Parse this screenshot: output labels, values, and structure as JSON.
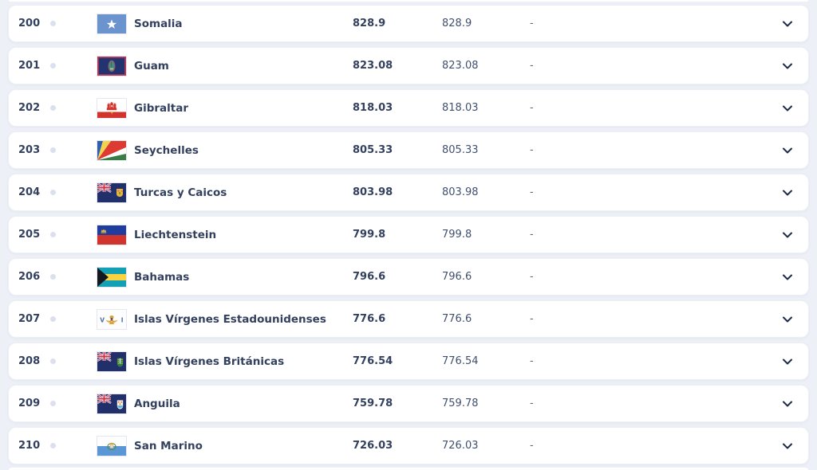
{
  "list": {
    "rows": [
      {
        "rank": "200",
        "country": "Somalia",
        "flag": "somalia",
        "value1": "828.9",
        "value2": "828.9",
        "value3": "-"
      },
      {
        "rank": "201",
        "country": "Guam",
        "flag": "guam",
        "value1": "823.08",
        "value2": "823.08",
        "value3": "-"
      },
      {
        "rank": "202",
        "country": "Gibraltar",
        "flag": "gibraltar",
        "value1": "818.03",
        "value2": "818.03",
        "value3": "-"
      },
      {
        "rank": "203",
        "country": "Seychelles",
        "flag": "seychelles",
        "value1": "805.33",
        "value2": "805.33",
        "value3": "-"
      },
      {
        "rank": "204",
        "country": "Turcas y Caicos",
        "flag": "turcas-y-caicos",
        "value1": "803.98",
        "value2": "803.98",
        "value3": "-"
      },
      {
        "rank": "205",
        "country": "Liechtenstein",
        "flag": "liechtenstein",
        "value1": "799.8",
        "value2": "799.8",
        "value3": "-"
      },
      {
        "rank": "206",
        "country": "Bahamas",
        "flag": "bahamas",
        "value1": "796.6",
        "value2": "796.6",
        "value3": "-"
      },
      {
        "rank": "207",
        "country": "Islas Vírgenes Estadounidenses",
        "flag": "islas-virgenes-estadounidenses",
        "value1": "776.6",
        "value2": "776.6",
        "value3": "-"
      },
      {
        "rank": "208",
        "country": "Islas Vírgenes Británicas",
        "flag": "islas-virgenes-britanicas",
        "value1": "776.54",
        "value2": "776.54",
        "value3": "-"
      },
      {
        "rank": "209",
        "country": "Anguila",
        "flag": "anguila",
        "value1": "759.78",
        "value2": "759.78",
        "value3": "-"
      },
      {
        "rank": "210",
        "country": "San Marino",
        "flag": "san-marino",
        "value1": "726.03",
        "value2": "726.03",
        "value3": "-"
      }
    ]
  },
  "colors": {
    "page_background": "#edf0f7",
    "card_background": "#ffffff",
    "text_primary": "#33415e",
    "text_secondary": "#41506e",
    "chevron": "#1e2b4a"
  }
}
